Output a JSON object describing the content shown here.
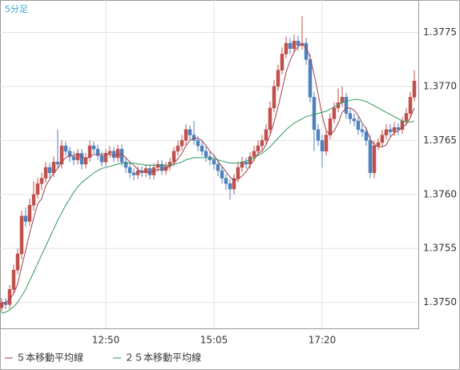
{
  "chart_data": {
    "type": "candlestick",
    "title": "5分足",
    "categories": [
      null,
      null,
      null,
      null,
      null,
      null,
      null,
      null,
      null,
      null,
      null,
      null,
      null,
      null,
      null,
      null,
      null,
      null,
      null,
      null,
      null,
      null,
      null,
      null,
      null,
      null,
      "12:50",
      null,
      null,
      null,
      null,
      null,
      null,
      null,
      null,
      null,
      null,
      null,
      null,
      null,
      null,
      null,
      null,
      null,
      null,
      null,
      null,
      null,
      null,
      null,
      null,
      null,
      null,
      "15:05",
      null,
      null,
      null,
      null,
      null,
      null,
      null,
      null,
      null,
      null,
      null,
      null,
      null,
      null,
      null,
      null,
      null,
      null,
      null,
      null,
      null,
      null,
      null,
      null,
      null,
      null,
      "17:20",
      null,
      null,
      null,
      null,
      null,
      null,
      null,
      null,
      null,
      null,
      null,
      null,
      null,
      null,
      null,
      null,
      null,
      null,
      null,
      null,
      null,
      null,
      null
    ],
    "open": [
      1.37495,
      1.375,
      1.37498,
      1.37512,
      1.3753,
      1.37545,
      1.3758,
      1.37575,
      1.3759,
      1.376,
      1.3761,
      1.37615,
      1.37625,
      1.3762,
      1.3763,
      1.37628,
      1.37645,
      1.3764,
      1.37635,
      1.37632,
      1.37638,
      1.37628,
      1.37634,
      1.37645,
      1.37642,
      1.37636,
      1.3763,
      1.37638,
      1.3764,
      1.37634,
      1.37642,
      1.3763,
      1.37625,
      1.3762,
      1.37618,
      1.37622,
      1.3762,
      1.37624,
      1.37618,
      1.37625,
      1.37628,
      1.37622,
      1.37626,
      1.3763,
      1.3764,
      1.37645,
      1.3765,
      1.3766,
      1.37655,
      1.3765,
      1.37645,
      1.3764,
      1.37635,
      1.37632,
      1.37628,
      1.37622,
      1.37615,
      1.3761,
      1.37605,
      1.37615,
      1.37625,
      1.3763,
      1.37628,
      1.37635,
      1.3764,
      1.37645,
      1.3765,
      1.3766,
      1.3768,
      1.377,
      1.37715,
      1.3773,
      1.3774,
      1.37735,
      1.37742,
      1.37738,
      1.3774,
      1.37725,
      1.3769,
      1.3766,
      1.3765,
      1.3764,
      1.37655,
      1.3767,
      1.3768,
      1.37685,
      1.3769,
      1.37675,
      1.3767,
      1.37668,
      1.3766,
      1.37658,
      1.3765,
      1.3762,
      1.37645,
      1.37648,
      1.37655,
      1.3766,
      1.37658,
      1.37662,
      1.3766,
      1.37668,
      1.37675,
      1.3769
    ],
    "high": [
      1.37504,
      1.37504,
      1.37516,
      1.37535,
      1.3755,
      1.37585,
      1.37588,
      1.37596,
      1.37612,
      1.37615,
      1.3762,
      1.3763,
      1.37629,
      1.37635,
      1.3766,
      1.3765,
      1.37649,
      1.37644,
      1.3764,
      1.37642,
      1.37642,
      1.37638,
      1.3765,
      1.37649,
      1.37646,
      1.3764,
      1.37642,
      1.37645,
      1.37644,
      1.37646,
      1.37646,
      1.37634,
      1.37629,
      1.37624,
      1.37626,
      1.37626,
      1.37628,
      1.37628,
      1.37629,
      1.37632,
      1.37632,
      1.3763,
      1.37634,
      1.37644,
      1.3765,
      1.37655,
      1.37665,
      1.37664,
      1.37668,
      1.37654,
      1.37649,
      1.37644,
      1.3764,
      1.37637,
      1.37632,
      1.37626,
      1.37619,
      1.37614,
      1.37619,
      1.3763,
      1.37635,
      1.37634,
      1.37639,
      1.37645,
      1.3765,
      1.37655,
      1.37665,
      1.37686,
      1.37706,
      1.3772,
      1.37736,
      1.37746,
      1.37745,
      1.37748,
      1.37747,
      1.37765,
      1.37745,
      1.3773,
      1.37695,
      1.37665,
      1.37655,
      1.3766,
      1.37675,
      1.37685,
      1.37698,
      1.377,
      1.37694,
      1.3768,
      1.37675,
      1.37672,
      1.37665,
      1.37662,
      1.37655,
      1.3765,
      1.37652,
      1.3766,
      1.37665,
      1.37665,
      1.37667,
      1.37666,
      1.37672,
      1.3768,
      1.37695,
      1.37715
    ],
    "low": [
      1.37491,
      1.37494,
      1.37494,
      1.37508,
      1.37526,
      1.3754,
      1.3757,
      1.37571,
      1.37585,
      1.37596,
      1.37604,
      1.37611,
      1.37615,
      1.37616,
      1.37624,
      1.37624,
      1.37636,
      1.3763,
      1.37627,
      1.37628,
      1.37623,
      1.37624,
      1.3763,
      1.37638,
      1.37632,
      1.37626,
      1.37626,
      1.37634,
      1.3763,
      1.3763,
      1.37626,
      1.3762,
      1.37615,
      1.37613,
      1.37614,
      1.37616,
      1.37616,
      1.37614,
      1.37614,
      1.37621,
      1.37618,
      1.37618,
      1.37622,
      1.37626,
      1.37636,
      1.37641,
      1.37646,
      1.3765,
      1.37646,
      1.3764,
      1.37636,
      1.3763,
      1.37627,
      1.37623,
      1.37617,
      1.3761,
      1.37604,
      1.37595,
      1.376,
      1.37611,
      1.37621,
      1.37624,
      1.37624,
      1.37631,
      1.37636,
      1.37641,
      1.37646,
      1.37656,
      1.37676,
      1.37696,
      1.37711,
      1.37726,
      1.3773,
      1.37731,
      1.37733,
      1.37734,
      1.3772,
      1.37685,
      1.3764,
      1.37645,
      1.37625,
      1.37636,
      1.37651,
      1.37666,
      1.37676,
      1.37681,
      1.3767,
      1.37665,
      1.37663,
      1.37655,
      1.37653,
      1.37645,
      1.37615,
      1.37615,
      1.37641,
      1.37644,
      1.37651,
      1.37653,
      1.37654,
      1.37655,
      1.37656,
      1.37664,
      1.37671,
      1.37686
    ],
    "close": [
      1.375,
      1.37498,
      1.37512,
      1.3753,
      1.37545,
      1.3758,
      1.37575,
      1.3759,
      1.376,
      1.3761,
      1.37615,
      1.37625,
      1.3762,
      1.3763,
      1.37628,
      1.37645,
      1.3764,
      1.37635,
      1.37632,
      1.37638,
      1.37628,
      1.37634,
      1.37645,
      1.37642,
      1.37636,
      1.3763,
      1.37638,
      1.3764,
      1.37634,
      1.37642,
      1.3763,
      1.37625,
      1.3762,
      1.37618,
      1.37622,
      1.3762,
      1.37624,
      1.37618,
      1.37625,
      1.37628,
      1.37622,
      1.37626,
      1.3763,
      1.3764,
      1.37645,
      1.3765,
      1.3766,
      1.37655,
      1.3765,
      1.37645,
      1.3764,
      1.37635,
      1.37632,
      1.37628,
      1.37622,
      1.37615,
      1.3761,
      1.37605,
      1.37615,
      1.37625,
      1.3763,
      1.37628,
      1.37635,
      1.3764,
      1.37645,
      1.3765,
      1.3766,
      1.3768,
      1.377,
      1.37715,
      1.3773,
      1.3774,
      1.37735,
      1.37742,
      1.37738,
      1.3774,
      1.37725,
      1.3769,
      1.3766,
      1.3765,
      1.3764,
      1.37655,
      1.3767,
      1.3768,
      1.37685,
      1.3769,
      1.37675,
      1.3767,
      1.37668,
      1.3766,
      1.37658,
      1.3765,
      1.3762,
      1.37645,
      1.37648,
      1.37655,
      1.3766,
      1.37658,
      1.37662,
      1.3766,
      1.37668,
      1.37675,
      1.3769,
      1.37705
    ],
    "up_color": "#c0504d",
    "down_color": "#4f81bd",
    "series": [
      {
        "name": "５本移動平均線",
        "color": "#a0404a",
        "values": [
          1.375,
          1.375,
          1.37503,
          1.37508,
          1.37517,
          1.37533,
          1.37548,
          1.37564,
          1.37578,
          1.37591,
          1.37596,
          1.37608,
          1.37614,
          1.3762,
          1.37624,
          1.3763,
          1.37634,
          1.37636,
          1.37636,
          1.37638,
          1.37635,
          1.37633,
          1.37635,
          1.37637,
          1.37637,
          1.37637,
          1.37638,
          1.37637,
          1.37636,
          1.37637,
          1.37637,
          1.37634,
          1.3763,
          1.37627,
          1.37623,
          1.37621,
          1.37621,
          1.3762,
          1.37622,
          1.37623,
          1.37623,
          1.37624,
          1.37626,
          1.37629,
          1.37633,
          1.37638,
          1.37645,
          1.3765,
          1.37652,
          1.37652,
          1.3765,
          1.37645,
          1.3764,
          1.37636,
          1.37631,
          1.37626,
          1.37621,
          1.37616,
          1.37613,
          1.37614,
          1.37617,
          1.37621,
          1.37627,
          1.37632,
          1.37638,
          1.3764,
          1.37646,
          1.37655,
          1.37667,
          1.37681,
          1.37697,
          1.37713,
          1.37724,
          1.37732,
          1.37737,
          1.37739,
          1.37736,
          1.37727,
          1.37711,
          1.37693,
          1.37673,
          1.37659,
          1.37655,
          1.37659,
          1.37666,
          1.37676,
          1.3768,
          1.3768,
          1.37678,
          1.37673,
          1.37666,
          1.37661,
          1.37651,
          1.37646,
          1.37644,
          1.37644,
          1.37646,
          1.37653,
          1.37657,
          1.37659,
          1.37662,
          1.37665,
          1.37671,
          1.3768
        ]
      },
      {
        "name": "２５本移動平均線",
        "color": "#2e9a5e",
        "values": [
          1.3749,
          1.37491,
          1.37493,
          1.37496,
          1.375,
          1.37506,
          1.37512,
          1.3752,
          1.37528,
          1.37536,
          1.37544,
          1.37552,
          1.3756,
          1.37568,
          1.37576,
          1.37583,
          1.3759,
          1.37596,
          1.37602,
          1.37607,
          1.37611,
          1.37614,
          1.37617,
          1.3762,
          1.37622,
          1.37624,
          1.37625,
          1.37626,
          1.37627,
          1.37628,
          1.37629,
          1.37629,
          1.37629,
          1.37629,
          1.37628,
          1.37628,
          1.37627,
          1.37627,
          1.37627,
          1.37627,
          1.37627,
          1.37627,
          1.37627,
          1.37628,
          1.37629,
          1.3763,
          1.37632,
          1.37633,
          1.37634,
          1.37634,
          1.37634,
          1.37634,
          1.37634,
          1.37633,
          1.37632,
          1.37631,
          1.3763,
          1.37629,
          1.37629,
          1.37629,
          1.3763,
          1.37631,
          1.37632,
          1.37634,
          1.37636,
          1.37638,
          1.37641,
          1.37644,
          1.37648,
          1.37652,
          1.37656,
          1.3766,
          1.37663,
          1.37666,
          1.37668,
          1.3767,
          1.37672,
          1.37673,
          1.37674,
          1.37675,
          1.37676,
          1.37677,
          1.37679,
          1.37681,
          1.37683,
          1.37685,
          1.37686,
          1.37687,
          1.37688,
          1.37688,
          1.37687,
          1.37686,
          1.37684,
          1.37682,
          1.3768,
          1.37678,
          1.37676,
          1.37674,
          1.37672,
          1.3767,
          1.37668,
          1.37667,
          1.37667,
          1.37668
        ]
      }
    ],
    "ylim": [
      1.37476,
      1.3778
    ],
    "yticks": [
      {
        "value": 1.375,
        "label": "1.3750"
      },
      1.3755,
      {
        "value": 1.376,
        "label": "1.3760"
      },
      1.3765,
      {
        "value": 1.377,
        "label": "1.3770"
      },
      1.3775
    ],
    "grid": true
  }
}
